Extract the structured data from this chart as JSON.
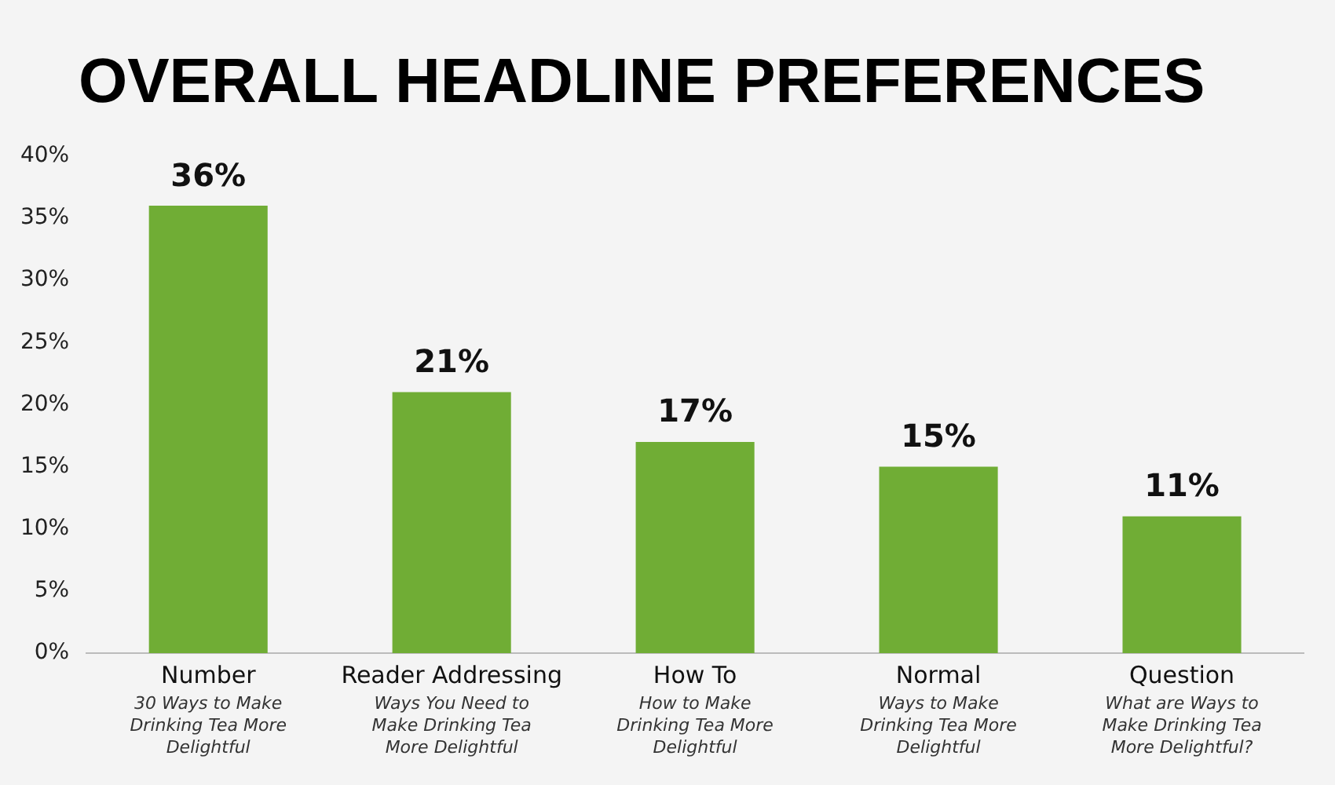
{
  "chart_data": {
    "type": "bar",
    "title": "OVERALL HEADLINE PREFERENCES",
    "categories": [
      "Number",
      "Reader Addressing",
      "How To",
      "Normal",
      "Question"
    ],
    "values": [
      36,
      21,
      17,
      15,
      11
    ],
    "color": "#70ad35",
    "data_labels": true,
    "value_labels": [
      "36%",
      "21%",
      "17%",
      "15%",
      "11%"
    ],
    "ylim": [
      0,
      40
    ],
    "yticks": [
      {
        "value": 0,
        "label": "0%"
      },
      {
        "value": 5,
        "label": "5%"
      },
      {
        "value": 10,
        "label": "10%"
      },
      {
        "value": 15,
        "label": "15%"
      },
      {
        "value": 20,
        "label": "20%"
      },
      {
        "value": 25,
        "label": "25%"
      },
      {
        "value": 30,
        "label": "30%"
      },
      {
        "value": 35,
        "label": "35%"
      },
      {
        "value": 40,
        "label": "40%"
      }
    ],
    "grid": false,
    "legend": false,
    "annotations": [
      "30 Ways to Make Drinking Tea More Delightful",
      "Ways You Need to Make Drinking Tea More Delightful",
      "How to Make Drinking Tea More Delightful",
      "Ways to Make Drinking Tea More Delightful",
      "What are Ways to Make Drinking Tea More Delightful?"
    ]
  }
}
